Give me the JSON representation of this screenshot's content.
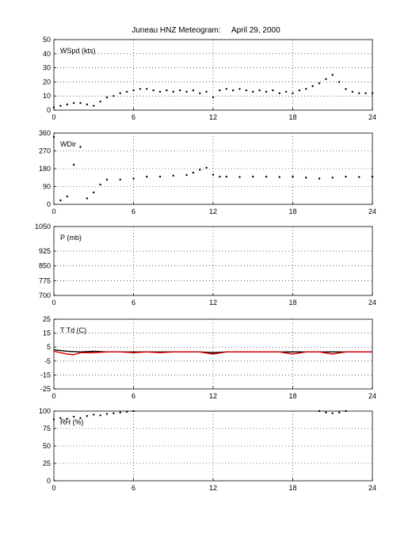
{
  "title": "Juneau HNZ Meteogram:     April 29, 2000",
  "chart_data": [
    {
      "type": "scatter",
      "label": "WSpd (kts)",
      "xlim": [
        0,
        24
      ],
      "ylim": [
        0,
        50
      ],
      "xticks": [
        0,
        6,
        12,
        18,
        24
      ],
      "yticks": [
        0,
        10,
        20,
        30,
        40,
        50
      ],
      "grid": true,
      "series": [
        {
          "color": "#000000",
          "x": [
            0,
            0.5,
            1,
            1.5,
            2,
            2.5,
            3,
            3.5,
            4,
            4.5,
            5,
            5.5,
            6,
            6.5,
            7,
            7.5,
            8,
            8.5,
            9,
            9.5,
            10,
            10.5,
            11,
            11.5,
            12,
            12.5,
            13,
            13.5,
            14,
            14.5,
            15,
            15.5,
            16,
            16.5,
            17,
            17.5,
            18,
            18.5,
            19,
            19.5,
            20,
            20.5,
            21,
            21.5,
            22,
            22.5,
            23,
            23.5,
            24
          ],
          "y": [
            2,
            3,
            4,
            5,
            5,
            4,
            3,
            6,
            9,
            10,
            12,
            13,
            14,
            15,
            15,
            14,
            13,
            14,
            13,
            14,
            13,
            14,
            12,
            13,
            9,
            14,
            15,
            14,
            15,
            14,
            13,
            14,
            13,
            14,
            12,
            13,
            12,
            14,
            15,
            17,
            19,
            22,
            25,
            20,
            15,
            13,
            12,
            12,
            12
          ]
        }
      ]
    },
    {
      "type": "scatter",
      "label": "WDir",
      "xlim": [
        0,
        24
      ],
      "ylim": [
        0,
        360
      ],
      "xticks": [
        0,
        6,
        12,
        18,
        24
      ],
      "yticks": [
        0,
        90,
        180,
        270,
        360
      ],
      "grid": true,
      "series": [
        {
          "color": "#000000",
          "x": [
            0,
            0.5,
            1,
            1.5,
            2,
            2.5,
            3,
            3.5,
            4,
            5,
            6,
            7,
            8,
            9,
            10,
            10.5,
            11,
            11.5,
            12,
            12.5,
            13,
            14,
            15,
            16,
            17,
            18,
            19,
            20,
            21,
            22,
            23,
            24
          ],
          "y": [
            340,
            20,
            40,
            200,
            290,
            30,
            60,
            100,
            125,
            125,
            130,
            140,
            140,
            145,
            148,
            160,
            175,
            185,
            150,
            140,
            140,
            138,
            140,
            140,
            138,
            140,
            135,
            130,
            135,
            140,
            138,
            140
          ]
        }
      ]
    },
    {
      "type": "line",
      "label": "P (mb)",
      "xlim": [
        0,
        24
      ],
      "ylim": [
        700,
        1050
      ],
      "xticks": [
        0,
        6,
        12,
        18,
        24
      ],
      "yticks": [
        700,
        775,
        850,
        925,
        1050
      ],
      "grid": true,
      "series": []
    },
    {
      "type": "line",
      "label": "T Td (C)",
      "xlim": [
        0,
        24
      ],
      "ylim": [
        -25,
        25
      ],
      "xticks": [
        0,
        6,
        12,
        18,
        24
      ],
      "yticks": [
        -25,
        -15,
        -5,
        5,
        15,
        25
      ],
      "grid": true,
      "series": [
        {
          "color": "#000000",
          "x": [
            0,
            1,
            2,
            3,
            4,
            5,
            6,
            7,
            8,
            9,
            10,
            11,
            12,
            13,
            14,
            15,
            16,
            17,
            18,
            19,
            20,
            21,
            22,
            23,
            24
          ],
          "y": [
            3,
            2,
            1.5,
            2,
            1.5,
            1.5,
            1.5,
            1.5,
            1.5,
            1.5,
            1.5,
            1.5,
            1,
            1.5,
            1.5,
            1.5,
            1.5,
            1.5,
            1.5,
            1.5,
            1.5,
            1.5,
            1.5,
            1.5,
            1.5
          ]
        },
        {
          "color": "#dd0000",
          "x": [
            0,
            1,
            1.5,
            2,
            3,
            4,
            5,
            6,
            7,
            8,
            9,
            10,
            11,
            12,
            13,
            14,
            15,
            16,
            17,
            18,
            19,
            20,
            21,
            22,
            23,
            24
          ],
          "y": [
            2,
            0,
            -0.5,
            1,
            1,
            1.5,
            1.5,
            1,
            1.5,
            1,
            1.5,
            1.5,
            1.5,
            0,
            1.5,
            1.5,
            1.5,
            1.5,
            1.5,
            0,
            1.5,
            1.5,
            0,
            1.5,
            1.5,
            1.5
          ]
        }
      ]
    },
    {
      "type": "scatter",
      "label": "RH (%)",
      "xlim": [
        0,
        24
      ],
      "ylim": [
        0,
        100
      ],
      "xticks": [
        0,
        6,
        12,
        18,
        24
      ],
      "yticks": [
        0,
        25,
        50,
        75,
        100
      ],
      "grid": true,
      "series": [
        {
          "color": "#000000",
          "x": [
            0,
            0.5,
            1,
            1.5,
            2,
            2.5,
            3,
            3.5,
            4,
            4.5,
            5,
            5.5,
            6
          ],
          "y": [
            88,
            90,
            89,
            92,
            90,
            93,
            95,
            94,
            96,
            97,
            98,
            99,
            100
          ]
        },
        {
          "color": "#000000",
          "x": [
            20,
            20.5,
            21,
            21.5,
            22
          ],
          "y": [
            100,
            98,
            97,
            98,
            100
          ]
        }
      ]
    }
  ]
}
